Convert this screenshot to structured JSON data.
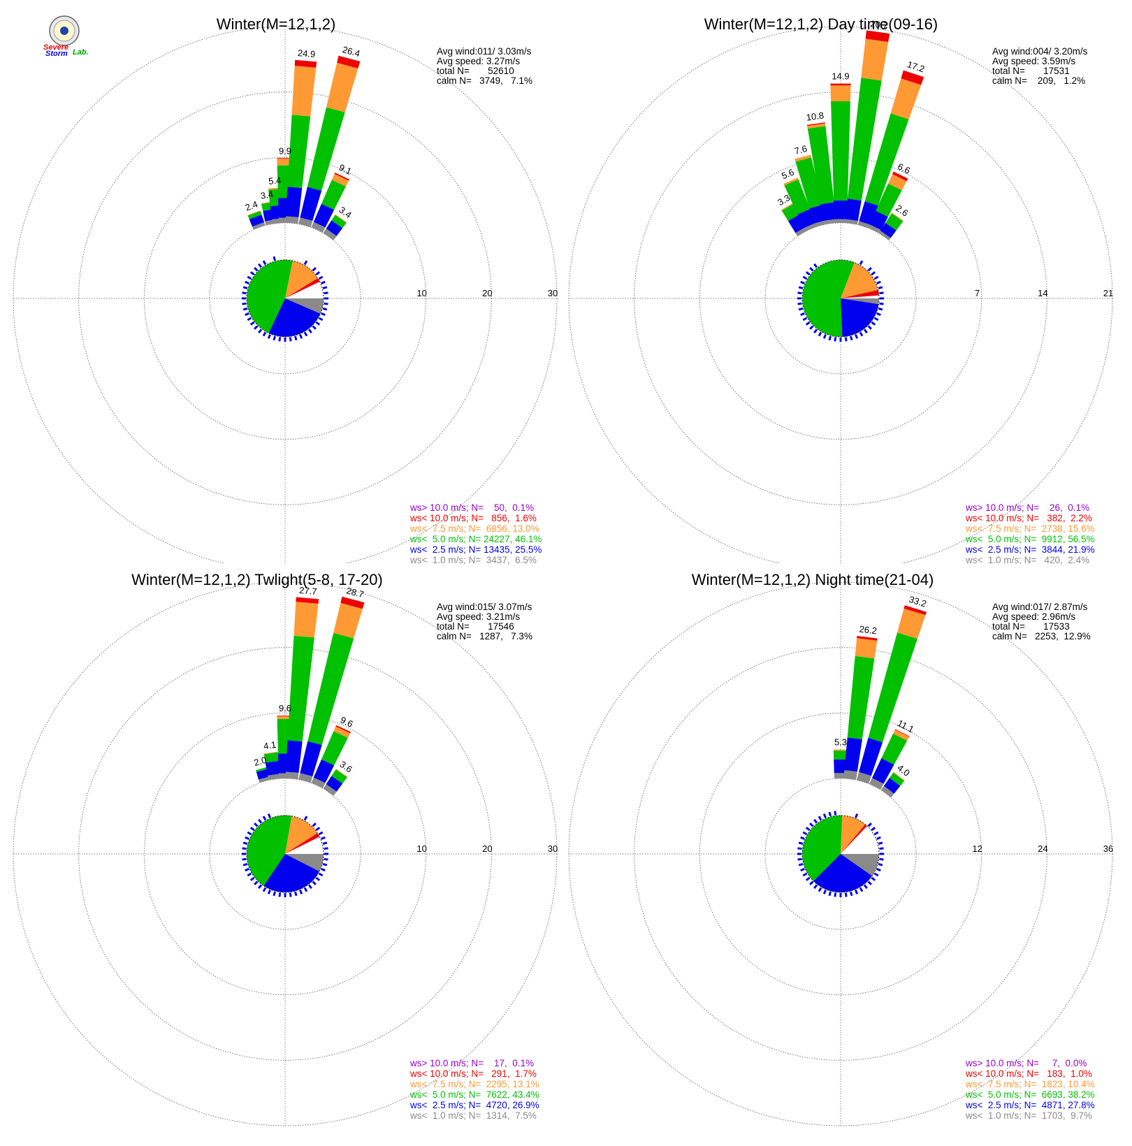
{
  "logo": {
    "text_severe": "Severe",
    "text_storm": "Storm",
    "text_lab": "Lab."
  },
  "colors": {
    "gray": "#8a8a8a",
    "blue": "#0000ee",
    "green": "#00c000",
    "orange": "#ff9933",
    "red": "#ee0000",
    "purple": "#9900cc"
  },
  "chart_data": [
    {
      "type": "windrose",
      "title": "Winter(M=12,1,2)",
      "rings": [
        "10",
        "20",
        "30"
      ],
      "rmax": 30,
      "stats": [
        "Avg wind:011/ 3.03m/s",
        "Avg speed: 3.27m/s",
        "total N=       52610",
        "calm N=   3749,   7.1%"
      ],
      "legend": [
        {
          "text": "ws> 10.0 m/s; N=    50,  0.1%",
          "color": "#9900cc"
        },
        {
          "text": "ws< 10.0 m/s; N=   856,  1.6%",
          "color": "#ee0000"
        },
        {
          "text": "ws<  7.5 m/s; N=  6856, 13.0%",
          "color": "#ff9933"
        },
        {
          "text": "ws<  5.0 m/s; N= 24227, 46.1%",
          "color": "#00c000"
        },
        {
          "text": "ws<  2.5 m/s; N= 13435, 25.5%",
          "color": "#0000ee"
        },
        {
          "text": "ws<  1.0 m/s; N=  3437,  6.5%",
          "color": "#8a8a8a"
        }
      ],
      "bars": [
        {
          "dir": 340,
          "total": 2.4,
          "bands": [
            0.5,
            1.2,
            0.6,
            0.1,
            0
          ]
        },
        {
          "dir": 350,
          "total": 3.4,
          "bands": [
            0.6,
            1.6,
            1.1,
            0.1,
            0
          ]
        },
        {
          "dir": 355,
          "total": 5.4,
          "bands": [
            0.7,
            2.0,
            2.5,
            0.2,
            0
          ]
        },
        {
          "dir": 0,
          "total": 9.9,
          "bands": [
            0.8,
            3.0,
            5.0,
            1.0,
            0.1
          ]
        },
        {
          "dir": 5,
          "total": 24.9,
          "bands": [
            1.0,
            4.5,
            11.0,
            7.5,
            0.9
          ]
        },
        {
          "dir": 15,
          "total": 26.4,
          "bands": [
            1.0,
            4.8,
            12.5,
            7.0,
            1.1
          ]
        },
        {
          "dir": 25,
          "total": 9.1,
          "bands": [
            0.9,
            3.0,
            4.0,
            1.0,
            0.2
          ]
        },
        {
          "dir": 35,
          "total": 3.4,
          "bands": [
            0.8,
            1.5,
            1.0,
            0.1,
            0
          ]
        }
      ],
      "labels": [
        {
          "dir": 340,
          "text": "2.4"
        },
        {
          "dir": 350,
          "text": "3.4"
        },
        {
          "dir": 355,
          "text": "5.4"
        },
        {
          "dir": 0,
          "text": "9.9"
        },
        {
          "dir": 5,
          "text": "24.9"
        },
        {
          "dir": 15,
          "text": "26.4"
        },
        {
          "dir": 25,
          "text": "9.1"
        },
        {
          "dir": 35,
          "text": "3.4"
        }
      ],
      "pie": [
        {
          "color": "#8a8a8a",
          "value": 6.5
        },
        {
          "color": "#0000ee",
          "value": 25.5
        },
        {
          "color": "#00c000",
          "value": 46.1
        },
        {
          "color": "#ff9933",
          "value": 13.0
        },
        {
          "color": "#ee0000",
          "value": 1.6
        },
        {
          "color": "#9900cc",
          "value": 0.1
        },
        {
          "color": "#ffffff",
          "value": 7.1
        }
      ]
    },
    {
      "type": "windrose",
      "title": "Winter(M=12,1,2) Day time(09-16)",
      "rings": [
        "7",
        "14",
        "21"
      ],
      "rmax": 21,
      "stats": [
        "Avg wind:004/ 3.20m/s",
        "Avg speed: 3.59m/s",
        "total N=       17531",
        "calm N=    209,   1.2%"
      ],
      "legend": [
        {
          "text": "ws> 10.0 m/s; N=    26,  0.1%",
          "color": "#9900cc"
        },
        {
          "text": "ws< 10.0 m/s; N=   382,  2.2%",
          "color": "#ee0000"
        },
        {
          "text": "ws<  7.5 m/s; N=  2738, 15.6%",
          "color": "#ff9933"
        },
        {
          "text": "ws<  5.0 m/s; N=  9912, 56.5%",
          "color": "#00c000"
        },
        {
          "text": "ws<  2.5 m/s; N=  3844, 21.9%",
          "color": "#0000ee"
        },
        {
          "text": "ws<  1.0 m/s; N=   420,  2.4%",
          "color": "#8a8a8a"
        }
      ],
      "bars": [
        {
          "dir": 330,
          "total": 3.3,
          "bands": [
            0.4,
            1.5,
            1.3,
            0.1,
            0
          ]
        },
        {
          "dir": 337,
          "total": 5.6,
          "bands": [
            0.4,
            1.6,
            3.4,
            0.2,
            0
          ]
        },
        {
          "dir": 345,
          "total": 7.6,
          "bands": [
            0.4,
            1.7,
            5.2,
            0.3,
            0
          ]
        },
        {
          "dir": 352,
          "total": 10.8,
          "bands": [
            0.4,
            1.8,
            8.2,
            0.3,
            0.1
          ]
        },
        {
          "dir": 0,
          "total": 14.9,
          "bands": [
            0.4,
            2.0,
            10.6,
            1.7,
            0.2
          ]
        },
        {
          "dir": 8,
          "total": 20.7,
          "bands": [
            0.4,
            2.2,
            13.0,
            4.2,
            0.9
          ]
        },
        {
          "dir": 18,
          "total": 17.2,
          "bands": [
            0.4,
            2.2,
            9.8,
            3.9,
            0.9
          ]
        },
        {
          "dir": 26,
          "total": 6.6,
          "bands": [
            0.4,
            1.6,
            3.2,
            1.1,
            0.3
          ]
        },
        {
          "dir": 35,
          "total": 2.6,
          "bands": [
            0.3,
            1.0,
            1.2,
            0.1,
            0
          ]
        }
      ],
      "labels": [
        {
          "dir": 330,
          "text": "3.3"
        },
        {
          "dir": 337,
          "text": "5.6"
        },
        {
          "dir": 345,
          "text": "7.6"
        },
        {
          "dir": 352,
          "text": "10.8"
        },
        {
          "dir": 0,
          "text": "14.9"
        },
        {
          "dir": 8,
          "text": "20.7"
        },
        {
          "dir": 18,
          "text": "17.2"
        },
        {
          "dir": 26,
          "text": "6.6"
        },
        {
          "dir": 35,
          "text": "2.6"
        }
      ],
      "pie": [
        {
          "color": "#8a8a8a",
          "value": 2.4
        },
        {
          "color": "#0000ee",
          "value": 21.9
        },
        {
          "color": "#00c000",
          "value": 56.5
        },
        {
          "color": "#ff9933",
          "value": 15.6
        },
        {
          "color": "#ee0000",
          "value": 2.2
        },
        {
          "color": "#9900cc",
          "value": 0.1
        },
        {
          "color": "#ffffff",
          "value": 1.2
        }
      ]
    },
    {
      "type": "windrose",
      "title": "Winter(M=12,1,2) Twlight(5-8, 17-20)",
      "rings": [
        "10",
        "20",
        "30"
      ],
      "rmax": 30,
      "stats": [
        "Avg wind:015/ 3.07m/s",
        "Avg speed: 3.21m/s",
        "total N=       17546",
        "calm N=   1287,   7.3%"
      ],
      "legend": [
        {
          "text": "ws> 10.0 m/s; N=    17,  0.1%",
          "color": "#9900cc"
        },
        {
          "text": "ws< 10.0 m/s; N=   291,  1.7%",
          "color": "#ee0000"
        },
        {
          "text": "ws<  7.5 m/s; N=  2295, 13.1%",
          "color": "#ff9933"
        },
        {
          "text": "ws<  5.0 m/s; N=  7622, 43.4%",
          "color": "#00c000"
        },
        {
          "text": "ws<  2.5 m/s; N=  4720, 26.9%",
          "color": "#0000ee"
        },
        {
          "text": "ws<  1.0 m/s; N=  1314,  7.5%",
          "color": "#8a8a8a"
        }
      ],
      "bars": [
        {
          "dir": 345,
          "total": 2.0,
          "bands": [
            0.5,
            1.2,
            0.3,
            0,
            0
          ]
        },
        {
          "dir": 352,
          "total": 4.1,
          "bands": [
            0.7,
            2.0,
            1.3,
            0.1,
            0
          ]
        },
        {
          "dir": 0,
          "total": 9.6,
          "bands": [
            0.8,
            3.0,
            5.3,
            0.4,
            0.1
          ]
        },
        {
          "dir": 5,
          "total": 27.7,
          "bands": [
            1.0,
            4.8,
            16.0,
            5.2,
            0.7
          ]
        },
        {
          "dir": 15,
          "total": 28.7,
          "bands": [
            1.0,
            5.0,
            17.0,
            4.7,
            1.0
          ]
        },
        {
          "dir": 25,
          "total": 9.6,
          "bands": [
            0.9,
            3.0,
            4.7,
            0.8,
            0.2
          ]
        },
        {
          "dir": 35,
          "total": 3.6,
          "bands": [
            0.8,
            1.5,
            1.2,
            0.1,
            0
          ]
        }
      ],
      "labels": [
        {
          "dir": 345,
          "text": "2.0"
        },
        {
          "dir": 352,
          "text": "4.1"
        },
        {
          "dir": 0,
          "text": "9.6"
        },
        {
          "dir": 5,
          "text": "27.7"
        },
        {
          "dir": 15,
          "text": "28.7"
        },
        {
          "dir": 25,
          "text": "9.6"
        },
        {
          "dir": 35,
          "text": "3.6"
        }
      ],
      "pie": [
        {
          "color": "#8a8a8a",
          "value": 7.5
        },
        {
          "color": "#0000ee",
          "value": 26.9
        },
        {
          "color": "#00c000",
          "value": 43.4
        },
        {
          "color": "#ff9933",
          "value": 13.1
        },
        {
          "color": "#ee0000",
          "value": 1.7
        },
        {
          "color": "#9900cc",
          "value": 0.1
        },
        {
          "color": "#ffffff",
          "value": 7.3
        }
      ]
    },
    {
      "type": "windrose",
      "title": "Winter(M=12,1,2) Night time(21-04)",
      "rings": [
        "12",
        "24",
        "36"
      ],
      "rmax": 36,
      "stats": [
        "Avg wind:017/ 2.87m/s",
        "Avg speed: 2.96m/s",
        "total N=       17533",
        "calm N=   2253,  12.9%"
      ],
      "legend": [
        {
          "text": "ws> 10.0 m/s; N=     7,  0.0%",
          "color": "#9900cc"
        },
        {
          "text": "ws< 10.0 m/s; N=   183,  1.0%",
          "color": "#ee0000"
        },
        {
          "text": "ws<  7.5 m/s; N=  1823, 10.4%",
          "color": "#ff9933"
        },
        {
          "text": "ws<  5.0 m/s; N=  6693, 38.2%",
          "color": "#00c000"
        },
        {
          "text": "ws<  2.5 m/s; N=  4871, 27.8%",
          "color": "#0000ee"
        },
        {
          "text": "ws<  1.0 m/s; N=  1703,  9.7%",
          "color": "#8a8a8a"
        }
      ],
      "bars": [
        {
          "dir": 0,
          "total": 5.3,
          "bands": [
            1.0,
            2.5,
            1.6,
            0.2,
            0
          ]
        },
        {
          "dir": 7,
          "total": 26.2,
          "bands": [
            1.5,
            6.0,
            15.0,
            3.3,
            0.4
          ]
        },
        {
          "dir": 17,
          "total": 33.2,
          "bands": [
            1.5,
            6.5,
            20.0,
            4.6,
            0.6
          ]
        },
        {
          "dir": 27,
          "total": 11.1,
          "bands": [
            1.2,
            4.0,
            5.0,
            0.8,
            0.1
          ]
        },
        {
          "dir": 37,
          "total": 4.0,
          "bands": [
            0.9,
            1.8,
            1.2,
            0.1,
            0
          ]
        }
      ],
      "labels": [
        {
          "dir": 0,
          "text": "5.3"
        },
        {
          "dir": 7,
          "text": "26.2"
        },
        {
          "dir": 17,
          "text": "33.2"
        },
        {
          "dir": 27,
          "text": "11.1"
        },
        {
          "dir": 37,
          "text": "4.0"
        }
      ],
      "pie": [
        {
          "color": "#8a8a8a",
          "value": 9.7
        },
        {
          "color": "#0000ee",
          "value": 27.8
        },
        {
          "color": "#00c000",
          "value": 38.2
        },
        {
          "color": "#ff9933",
          "value": 10.4
        },
        {
          "color": "#ee0000",
          "value": 1.0
        },
        {
          "color": "#9900cc",
          "value": 0.0
        },
        {
          "color": "#ffffff",
          "value": 12.9
        }
      ]
    }
  ]
}
